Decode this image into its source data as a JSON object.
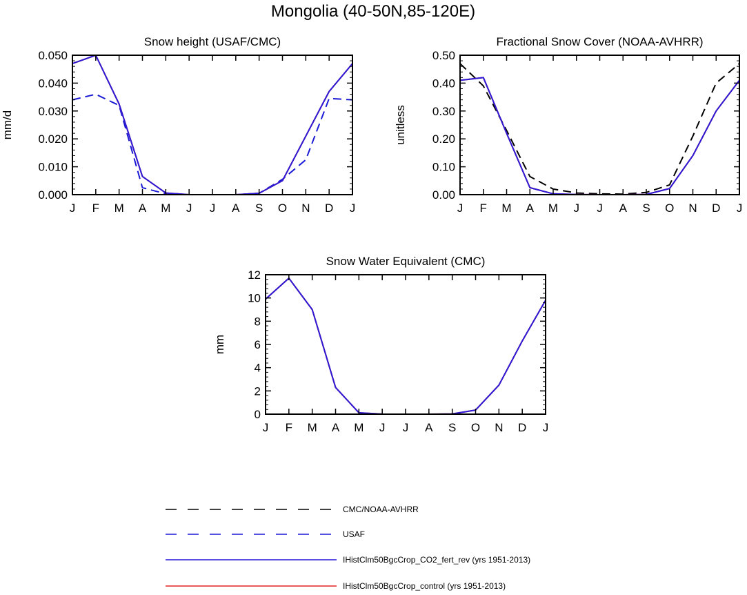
{
  "title": "Mongolia (40-50N,85-120E)",
  "colors": {
    "obs_black": "#000000",
    "usaf_blue": "#1a1ad6",
    "model_rev": "#2a1ad8",
    "model_control": "#e02020"
  },
  "legend": [
    {
      "label": "CMC/NOAA-AVHRR",
      "color": "#000000",
      "dash": "dashed"
    },
    {
      "label": "USAF",
      "color": "#1a1ad6",
      "dash": "dashed"
    },
    {
      "label": "IHistClm50BgcCrop_CO2_fert_rev (yrs 1951-2013)",
      "color": "#2a1ad8",
      "dash": "solid"
    },
    {
      "label": "IHistClm50BgcCrop_control (yrs 1951-2013)",
      "color": "#e02020",
      "dash": "solid"
    }
  ],
  "chart_data": [
    {
      "type": "line",
      "title": "Snow height (USAF/CMC)",
      "ylabel": "mm/d",
      "xlabel": "",
      "categories": [
        "J",
        "F",
        "M",
        "A",
        "M",
        "J",
        "J",
        "A",
        "S",
        "O",
        "N",
        "D",
        "J"
      ],
      "ylim": [
        0,
        0.05
      ],
      "yticks": [
        "0.000",
        "0.010",
        "0.020",
        "0.030",
        "0.040",
        "0.050"
      ],
      "yticks_values": [
        0,
        0.01,
        0.02,
        0.03,
        0.04,
        0.05
      ],
      "series": [
        {
          "name": "USAF",
          "style": "dashed",
          "color": "#1a1ad6",
          "values": [
            0.034,
            0.036,
            0.032,
            0.0025,
            0.0003,
            0,
            0,
            0,
            0.0005,
            0.0055,
            0.0125,
            0.0345,
            0.034
          ]
        },
        {
          "name": "IHistClm50BgcCrop_control (yrs 1951-2013)",
          "style": "solid",
          "color": "#e02020",
          "values": [
            0.047,
            0.05,
            0.0325,
            0.0065,
            0.0006,
            0,
            0,
            0,
            0.0005,
            0.005,
            0.021,
            0.037,
            0.047
          ]
        },
        {
          "name": "IHistClm50BgcCrop_CO2_fert_rev (yrs 1951-2013)",
          "style": "solid",
          "color": "#2a1ad8",
          "values": [
            0.047,
            0.05,
            0.0325,
            0.0065,
            0.0006,
            0,
            0,
            0,
            0.0005,
            0.005,
            0.021,
            0.037,
            0.047
          ]
        },
        {
          "name": "CMC/NOAA-AVHRR",
          "style": "dashed",
          "color": "#000000",
          "values": [
            0,
            0,
            0,
            0,
            0,
            0,
            0,
            0,
            0,
            0,
            0,
            0,
            0
          ]
        }
      ]
    },
    {
      "type": "line",
      "title": "Fractional Snow Cover (NOAA-AVHRR)",
      "ylabel": "unitless",
      "xlabel": "",
      "categories": [
        "J",
        "F",
        "M",
        "A",
        "M",
        "J",
        "J",
        "A",
        "S",
        "O",
        "N",
        "D",
        "J"
      ],
      "ylim": [
        0,
        0.5
      ],
      "yticks": [
        "0.00",
        "0.10",
        "0.20",
        "0.30",
        "0.40",
        "0.50"
      ],
      "yticks_values": [
        0,
        0.1,
        0.2,
        0.3,
        0.4,
        0.5
      ],
      "series": [
        {
          "name": "CMC/NOAA-AVHRR",
          "style": "dashed",
          "color": "#000000",
          "values": [
            0.47,
            0.39,
            0.23,
            0.065,
            0.02,
            0.006,
            0.003,
            0.002,
            0.008,
            0.035,
            0.21,
            0.4,
            0.47
          ]
        },
        {
          "name": "IHistClm50BgcCrop_control (yrs 1951-2013)",
          "style": "solid",
          "color": "#e02020",
          "values": [
            0.41,
            0.42,
            0.22,
            0.025,
            0.003,
            0.0005,
            0,
            0,
            0.001,
            0.022,
            0.14,
            0.3,
            0.41
          ]
        },
        {
          "name": "IHistClm50BgcCrop_CO2_fert_rev (yrs 1951-2013)",
          "style": "solid",
          "color": "#2a1ad8",
          "values": [
            0.41,
            0.42,
            0.22,
            0.025,
            0.003,
            0.0005,
            0,
            0,
            0.001,
            0.022,
            0.14,
            0.3,
            0.41
          ]
        }
      ]
    },
    {
      "type": "line",
      "title": "Snow Water Equivalent (CMC)",
      "ylabel": "mm",
      "xlabel": "",
      "categories": [
        "J",
        "F",
        "M",
        "A",
        "M",
        "J",
        "J",
        "A",
        "S",
        "O",
        "N",
        "D",
        "J"
      ],
      "ylim": [
        0,
        12
      ],
      "yticks": [
        "0",
        "2",
        "4",
        "6",
        "8",
        "10",
        "12"
      ],
      "yticks_values": [
        0,
        2,
        4,
        6,
        8,
        10,
        12
      ],
      "series": [
        {
          "name": "CMC/NOAA-AVHRR",
          "style": "dashed",
          "color": "#000000",
          "values": [
            0,
            0,
            0,
            0,
            0,
            0,
            0,
            0,
            0,
            0,
            0,
            0,
            0
          ]
        },
        {
          "name": "IHistClm50BgcCrop_control (yrs 1951-2013)",
          "style": "solid",
          "color": "#e02020",
          "values": [
            9.9,
            11.7,
            9.0,
            2.3,
            0.12,
            0.01,
            0,
            0,
            0.02,
            0.35,
            2.5,
            6.3,
            9.8
          ]
        },
        {
          "name": "IHistClm50BgcCrop_CO2_fert_rev (yrs 1951-2013)",
          "style": "solid",
          "color": "#2a1ad8",
          "values": [
            9.9,
            11.7,
            9.0,
            2.3,
            0.12,
            0.01,
            0,
            0,
            0.02,
            0.35,
            2.5,
            6.3,
            9.8
          ]
        }
      ]
    }
  ]
}
